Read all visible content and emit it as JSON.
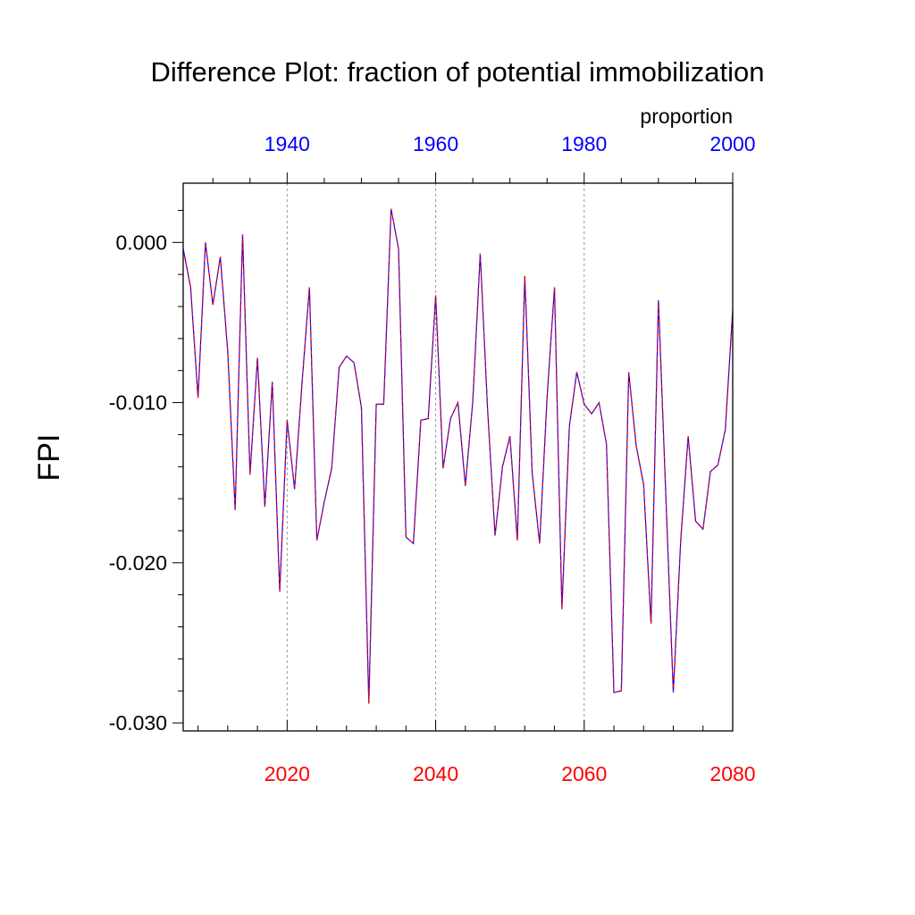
{
  "chart_data": {
    "type": "line",
    "title": "Difference Plot: fraction of potential immobilization",
    "units_label": "proportion",
    "ylabel": "FPI",
    "ylim": [
      -0.0305,
      0.0037
    ],
    "y_ticks": [
      0.0,
      -0.01,
      -0.02,
      -0.03
    ],
    "y_tick_labels": [
      "0.000",
      "-0.010",
      "-0.020",
      "-0.030"
    ],
    "y_minor_step": 0.002,
    "x_bottom": {
      "range": [
        2006,
        2080
      ],
      "ticks": [
        2020,
        2040,
        2060,
        2080
      ],
      "tick_labels": [
        "2020",
        "2040",
        "2060",
        "2080"
      ],
      "minor_step": 4,
      "color": "#ff0000"
    },
    "x_top": {
      "range": [
        1926,
        2000
      ],
      "ticks": [
        1940,
        1960,
        1980,
        2000
      ],
      "tick_labels": [
        "1940",
        "1960",
        "1980",
        "2000"
      ],
      "minor_step": 5,
      "color": "#0000ff"
    },
    "grid_x": [
      2020,
      2040,
      2060
    ],
    "series": [
      {
        "line_color": "#0000ff",
        "overlay_dash_color": "#ff0000",
        "x": [
          2006,
          2007,
          2008,
          2009,
          2010,
          2011,
          2012,
          2013,
          2014,
          2015,
          2016,
          2017,
          2018,
          2019,
          2020,
          2021,
          2022,
          2023,
          2024,
          2025,
          2026,
          2027,
          2028,
          2029,
          2030,
          2031,
          2032,
          2033,
          2034,
          2035,
          2036,
          2037,
          2038,
          2039,
          2040,
          2041,
          2042,
          2043,
          2044,
          2045,
          2046,
          2047,
          2048,
          2049,
          2050,
          2051,
          2052,
          2053,
          2054,
          2055,
          2056,
          2057,
          2058,
          2059,
          2060,
          2061,
          2062,
          2063,
          2064,
          2065,
          2066,
          2067,
          2068,
          2069,
          2070,
          2071,
          2072,
          2073,
          2074,
          2075,
          2076,
          2077,
          2078,
          2079,
          2080
        ],
        "values": [
          -0.0004,
          -0.0028,
          -0.0097,
          0.0,
          -0.0039,
          -0.0009,
          -0.0068,
          -0.0167,
          0.0005,
          -0.0145,
          -0.0072,
          -0.0165,
          -0.0087,
          -0.0218,
          -0.0111,
          -0.0154,
          -0.0088,
          -0.0028,
          -0.0186,
          -0.0162,
          -0.0141,
          -0.0078,
          -0.0071,
          -0.0075,
          -0.0103,
          -0.0288,
          -0.0101,
          -0.0101,
          0.0021,
          -0.0004,
          -0.0184,
          -0.0188,
          -0.0111,
          -0.011,
          -0.0033,
          -0.0141,
          -0.011,
          -0.01,
          -0.0152,
          -0.0099,
          -0.0007,
          -0.0105,
          -0.0183,
          -0.014,
          -0.0121,
          -0.0186,
          -0.0021,
          -0.0144,
          -0.0188,
          -0.0097,
          -0.0028,
          -0.0229,
          -0.0115,
          -0.0081,
          -0.0101,
          -0.0107,
          -0.01,
          -0.0126,
          -0.0281,
          -0.028,
          -0.0081,
          -0.0127,
          -0.0151,
          -0.0238,
          -0.0036,
          -0.0159,
          -0.0281,
          -0.0186,
          -0.0121,
          -0.0174,
          -0.0179,
          -0.0143,
          -0.0139,
          -0.0117,
          -0.0042
        ]
      }
    ]
  }
}
